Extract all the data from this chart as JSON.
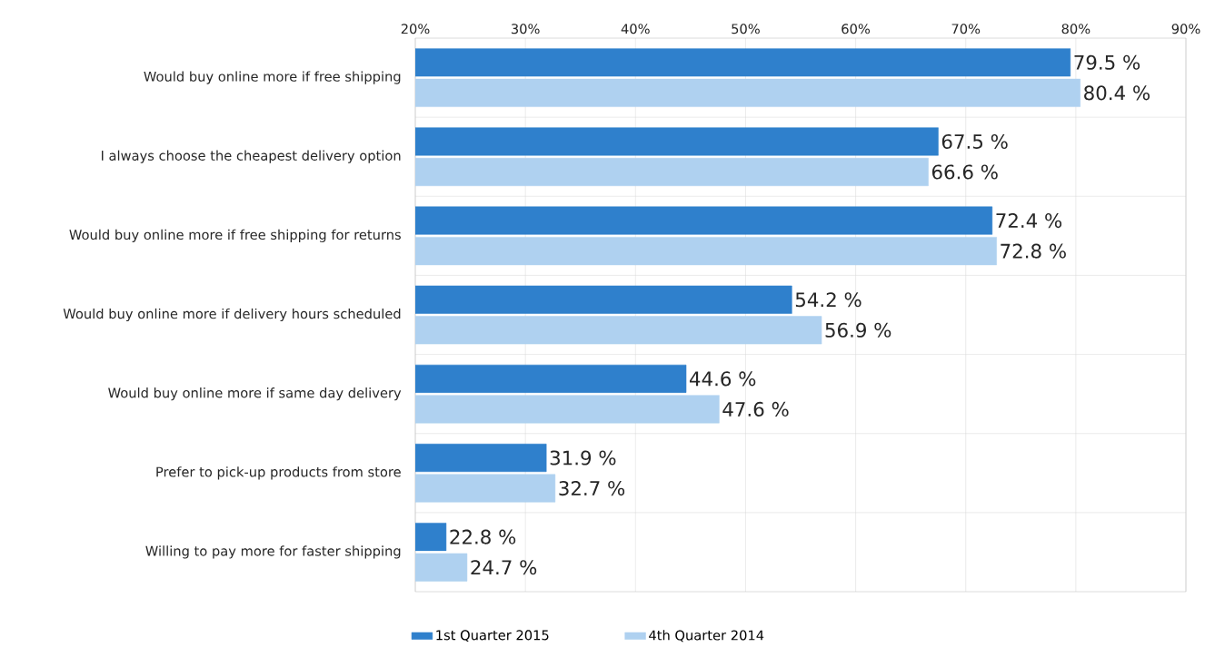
{
  "chart_data": {
    "type": "bar",
    "orientation": "horizontal",
    "categories": [
      "Would buy online more if free shipping",
      "I always choose the cheapest delivery option",
      "Would buy online more if free shipping for returns",
      "Would buy online more if delivery hours scheduled",
      "Would buy online more if same day delivery",
      "Prefer to pick-up products from store",
      "Willing to pay more for faster shipping"
    ],
    "series": [
      {
        "name": "1st Quarter 2015",
        "color": "#2f80cc",
        "values": [
          79.5,
          67.5,
          72.4,
          54.2,
          44.6,
          31.9,
          22.8
        ],
        "value_labels": [
          "79.5 %",
          "67.5 %",
          "72.4 %",
          "54.2 %",
          "44.6 %",
          "31.9 %",
          "22.8 %"
        ]
      },
      {
        "name": "4th Quarter 2014",
        "color": "#afd1f0",
        "values": [
          80.4,
          66.6,
          72.8,
          56.9,
          47.6,
          32.7,
          24.7
        ],
        "value_labels": [
          "80.4 %",
          "66.6 %",
          "72.8 %",
          "56.9 %",
          "47.6 %",
          "32.7 %",
          "24.7 %"
        ]
      }
    ],
    "xlim": [
      20,
      90
    ],
    "xticks": [
      {
        "value": 20,
        "label": "20%"
      },
      {
        "value": 30,
        "label": "30%"
      },
      {
        "value": 40,
        "label": "40%"
      },
      {
        "value": 50,
        "label": "50%"
      },
      {
        "value": 60,
        "label": "60%"
      },
      {
        "value": 70,
        "label": "70%"
      },
      {
        "value": 80,
        "label": "80%"
      },
      {
        "value": 90,
        "label": "90%"
      }
    ],
    "grid": true,
    "legend": "bottom left"
  }
}
